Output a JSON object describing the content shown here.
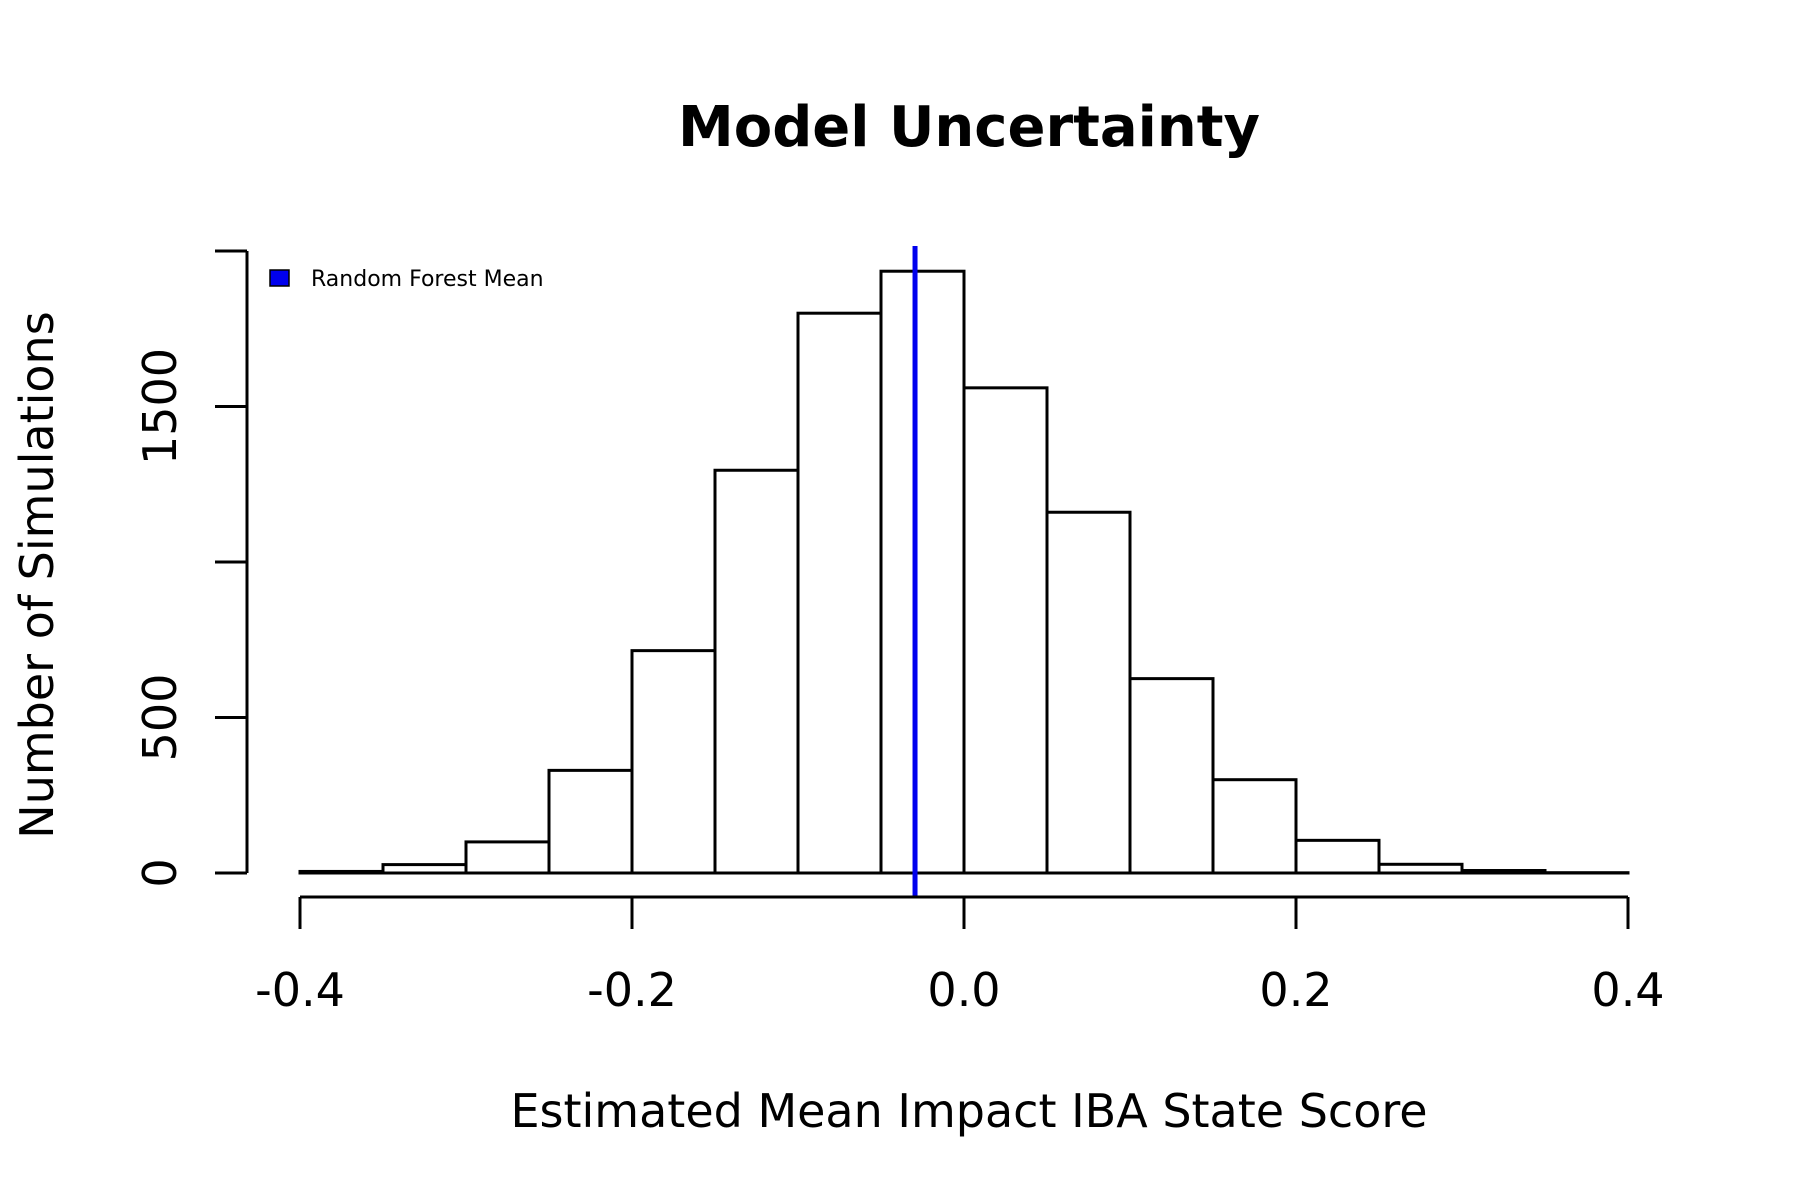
{
  "chart_data": {
    "type": "bar",
    "title": "Model Uncertainty",
    "xlabel": "Estimated Mean Impact IBA State Score",
    "ylabel": "Number of Simulations",
    "bins": [
      {
        "x0": -0.4,
        "x1": -0.35,
        "count": 5
      },
      {
        "x0": -0.35,
        "x1": -0.3,
        "count": 27
      },
      {
        "x0": -0.3,
        "x1": -0.25,
        "count": 100
      },
      {
        "x0": -0.25,
        "x1": -0.2,
        "count": 330
      },
      {
        "x0": -0.2,
        "x1": -0.15,
        "count": 715
      },
      {
        "x0": -0.15,
        "x1": -0.1,
        "count": 1295
      },
      {
        "x0": -0.1,
        "x1": -0.05,
        "count": 1800
      },
      {
        "x0": -0.05,
        "x1": 0.0,
        "count": 1935
      },
      {
        "x0": 0.0,
        "x1": 0.05,
        "count": 1560
      },
      {
        "x0": 0.05,
        "x1": 0.1,
        "count": 1160
      },
      {
        "x0": 0.1,
        "x1": 0.15,
        "count": 625
      },
      {
        "x0": 0.15,
        "x1": 0.2,
        "count": 300
      },
      {
        "x0": 0.2,
        "x1": 0.25,
        "count": 105
      },
      {
        "x0": 0.25,
        "x1": 0.3,
        "count": 28
      },
      {
        "x0": 0.3,
        "x1": 0.35,
        "count": 8
      },
      {
        "x0": 0.35,
        "x1": 0.4,
        "count": 1
      }
    ],
    "xlim": [
      -0.4,
      0.4
    ],
    "ylim": [
      0,
      2000
    ],
    "xticks": [
      -0.4,
      -0.2,
      0.0,
      0.2,
      0.4
    ],
    "xtick_labels": [
      "-0.4",
      "-0.2",
      "0.0",
      "0.2",
      "0.4"
    ],
    "yticks": [
      0,
      500,
      1000,
      1500,
      2000
    ],
    "ytick_labels": [
      "0",
      "500",
      "",
      "1500",
      ""
    ],
    "reference_line": {
      "name": "Random Forest Mean",
      "x": -0.0295,
      "color": "#0000ee"
    },
    "legend": {
      "position": "top-left",
      "entries": [
        "Random Forest Mean"
      ]
    },
    "grid": false,
    "bar_fill": "#ffffff",
    "bar_stroke": "#000000"
  }
}
